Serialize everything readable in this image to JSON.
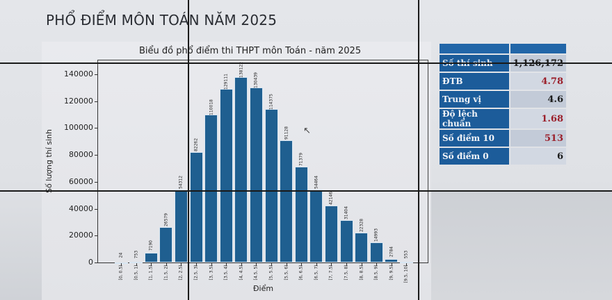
{
  "page": {
    "title": "PHỔ ĐIỂM MÔN TOÁN NĂM 2025"
  },
  "stats": {
    "rows": [
      {
        "label": "Số thí sinh",
        "value": "1,126,172",
        "color": "#1b1b1b"
      },
      {
        "label": "ĐTB",
        "value": "4.78",
        "color": "#9b1f2a"
      },
      {
        "label": "Trung vị",
        "value": "4.6",
        "color": "#1b1b1b"
      },
      {
        "label": "Độ lệch chuẩn",
        "value": "1.68",
        "color": "#9b1f2a"
      },
      {
        "label": "Số điểm 10",
        "value": "513",
        "color": "#9b1f2a"
      },
      {
        "label": "Số điểm 0",
        "value": "6",
        "color": "#1b1b1b"
      }
    ]
  },
  "chart_data": {
    "type": "bar",
    "title": "Biểu đồ phổ điểm thi THPT môn Toán - năm 2025",
    "xlabel": "Điểm",
    "ylabel": "Số lượng thí sinh",
    "ylim": [
      0,
      145000
    ],
    "yticks": [
      "0",
      "20000",
      "40000",
      "60000",
      "80000",
      "100000",
      "120000",
      "140000"
    ],
    "categories": [
      "[0, 0.5)",
      "[0.5, 1)",
      "[1, 1.5)",
      "[1.5, 2)",
      "[2, 2.5)",
      "[2.5, 3)",
      "[3, 3.5)",
      "[3.5, 4)",
      "[4, 4.5)",
      "[4.5, 5)",
      "[5, 5.5)",
      "[5.5, 6)",
      "[6, 6.5)",
      "[6.5, 7)",
      "[7, 7.5)",
      "[7.5, 8)",
      "[8, 8.5)",
      "[8.5, 9)",
      "[9, 9.5)",
      "[9.5, 10]"
    ],
    "values": [
      24,
      753,
      7190,
      26579,
      54312,
      82262,
      110018,
      129111,
      138122,
      130439,
      114375,
      91128,
      71379,
      54464,
      42146,
      31404,
      22328,
      14993,
      2784,
      553
    ],
    "bar_color": "#1f5f90",
    "grid": false,
    "legend": null
  }
}
